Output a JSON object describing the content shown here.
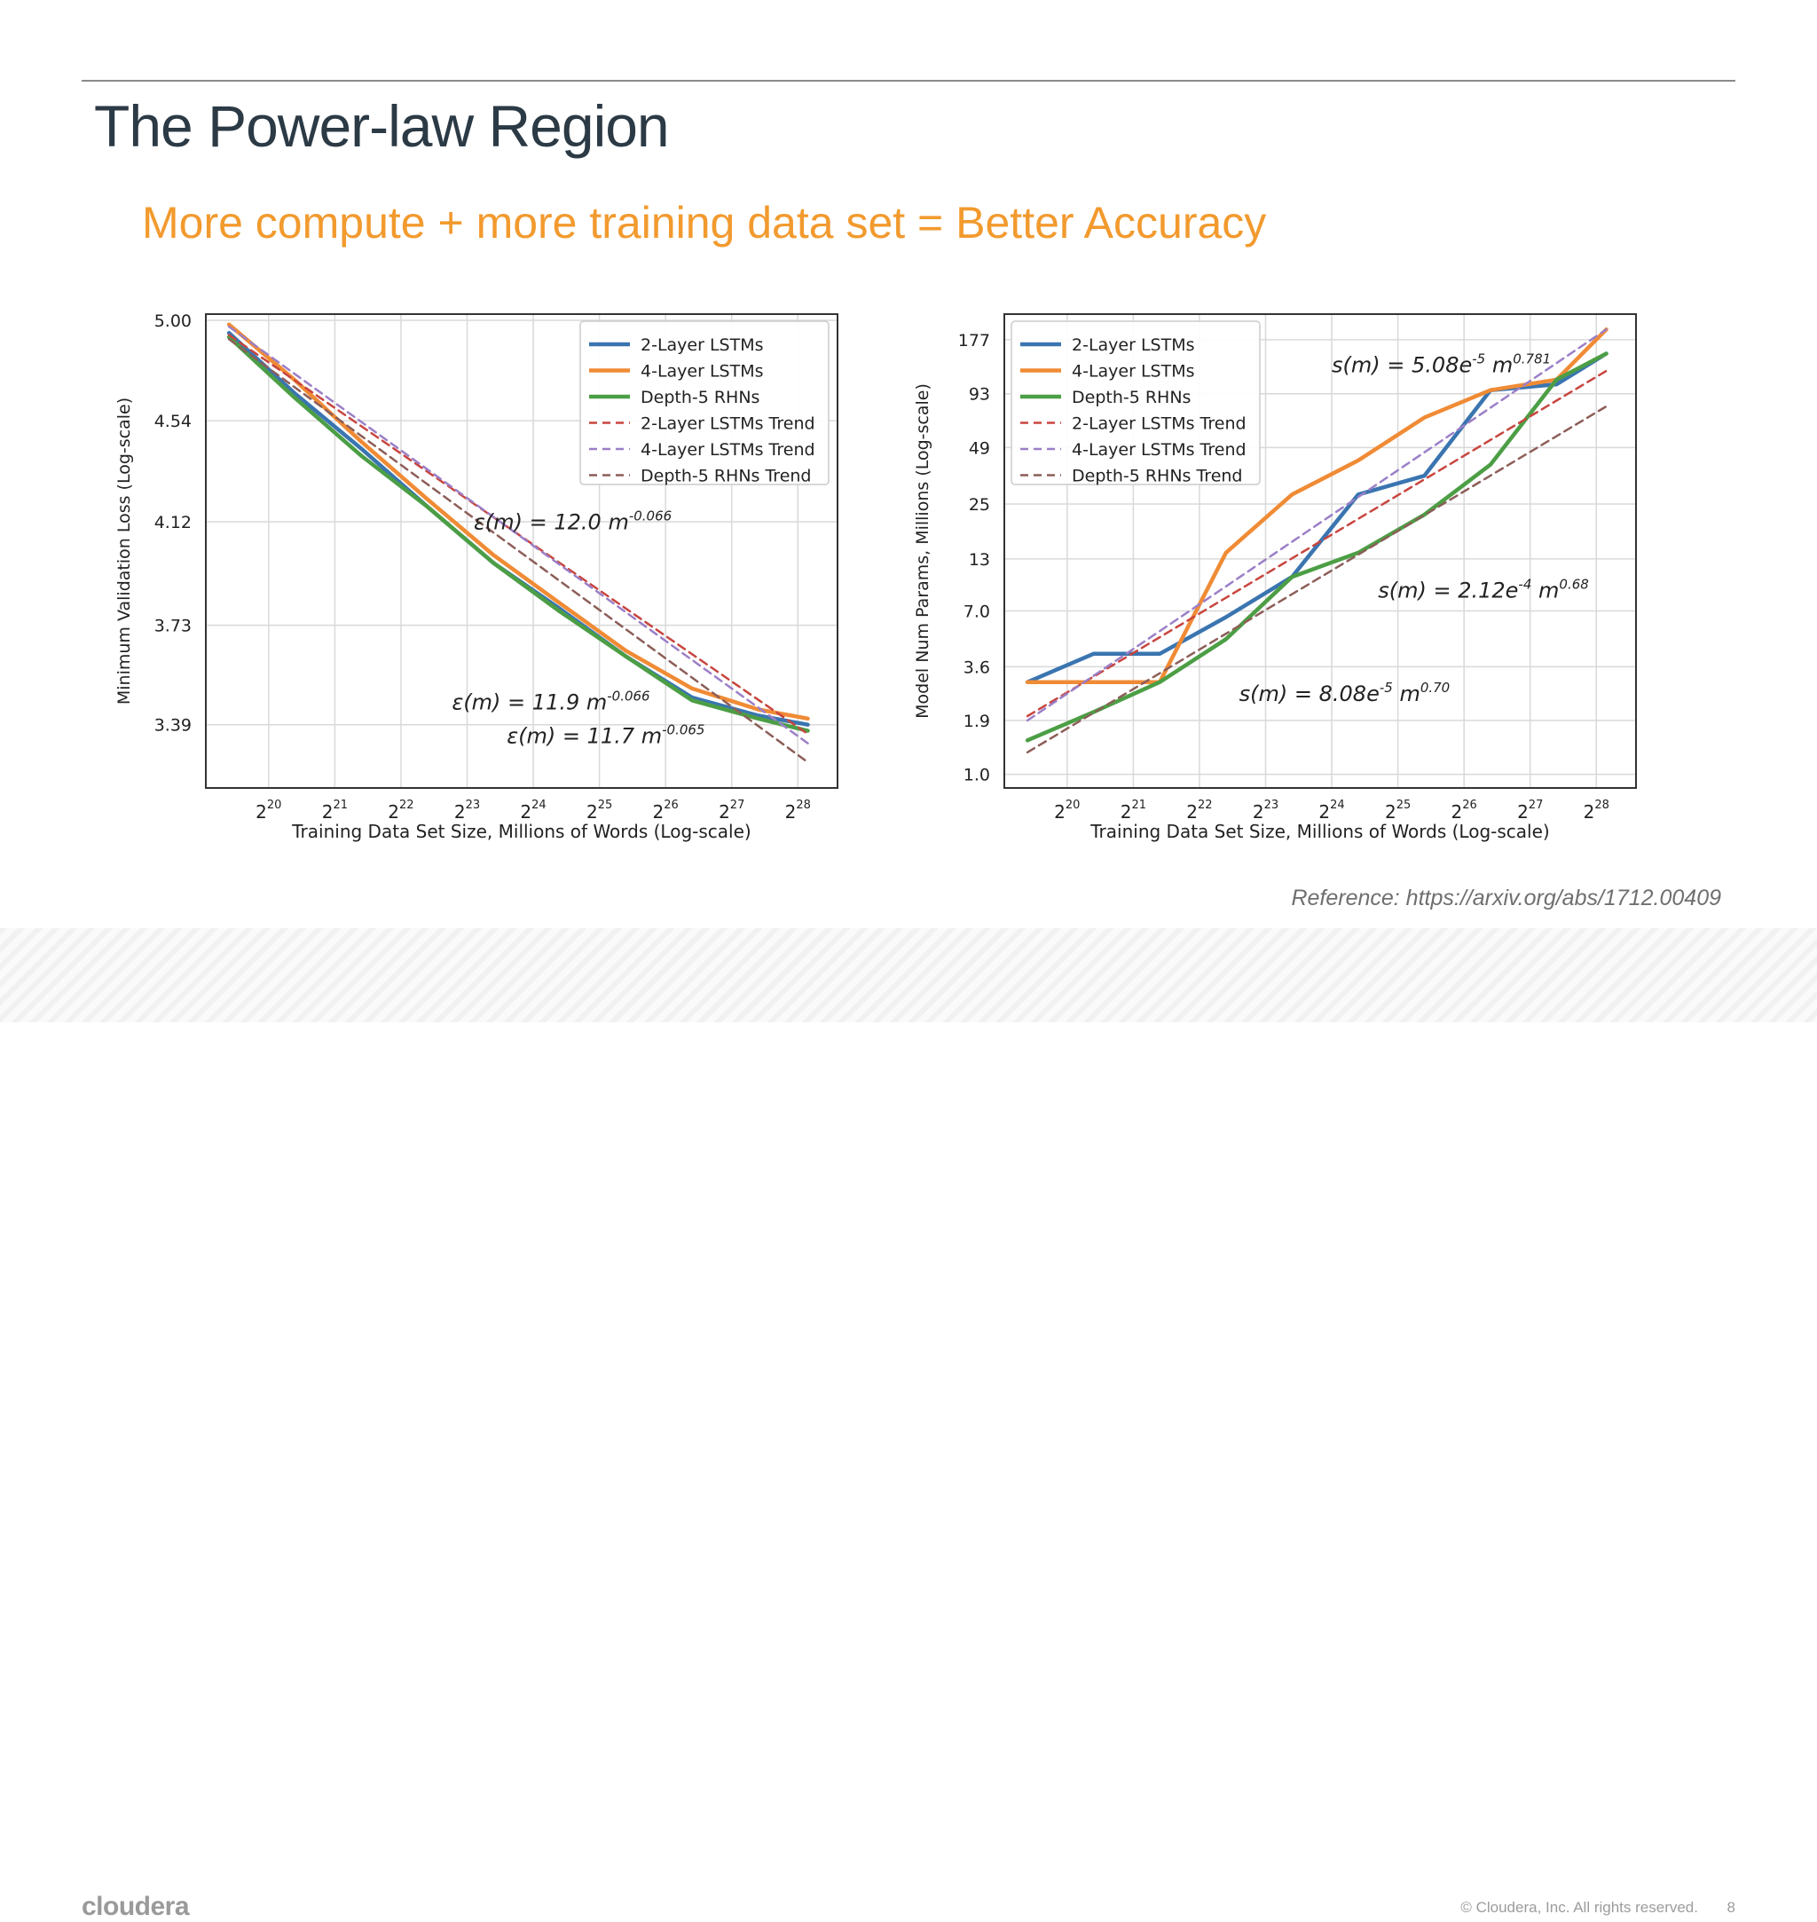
{
  "slide": {
    "title": "The Power-law Region",
    "subtitle": "More compute + more training data set = Better Accuracy",
    "reference": "Reference: https://arxiv.org/abs/1712.00409",
    "logo": "cloudera",
    "copyright": "© Cloudera, Inc. All rights reserved.",
    "page_number": "8"
  },
  "colors": {
    "title": "#2b3a45",
    "subtitle": "#f29a2e",
    "series_blue": "#3a75b0",
    "series_orange": "#f08b35",
    "series_green": "#4c9e45",
    "trend_red": "#c8453f",
    "trend_purple": "#9b7fc7",
    "trend_brown": "#8c5e58"
  },
  "chart_data": [
    {
      "type": "line",
      "xlabel": "Training Data Set Size, Millions of Words (Log-scale)",
      "ylabel": "Minimum Validation Loss (Log-scale)",
      "x_scale": "log2",
      "y_scale": "log",
      "x_ticks": [
        "20",
        "21",
        "22",
        "23",
        "24",
        "25",
        "26",
        "27",
        "28"
      ],
      "x_tick_base": "2",
      "y_ticks": [
        "5.00",
        "4.54",
        "4.12",
        "3.73",
        "3.39"
      ],
      "xlim": [
        19.05,
        28.6
      ],
      "ylim": [
        3.19,
        5.03
      ],
      "grid": true,
      "legend_position": "top-right",
      "series": [
        {
          "name": "2-Layer LSTMs",
          "style": "solid",
          "color": "#3a75b0",
          "x": [
            19.4,
            20.4,
            21.4,
            22.4,
            23.4,
            24.4,
            25.4,
            26.4,
            27.4,
            28.15
          ],
          "y": [
            4.94,
            4.66,
            4.42,
            4.18,
            3.96,
            3.79,
            3.62,
            3.48,
            3.42,
            3.39
          ]
        },
        {
          "name": "4-Layer LSTMs",
          "style": "solid",
          "color": "#f08b35",
          "x": [
            19.4,
            20.4,
            21.4,
            22.4,
            23.4,
            24.4,
            25.4,
            26.4,
            27.4,
            28.15
          ],
          "y": [
            4.98,
            4.72,
            4.45,
            4.21,
            3.99,
            3.81,
            3.64,
            3.51,
            3.44,
            3.41
          ]
        },
        {
          "name": "Depth-5 RHNs",
          "style": "solid",
          "color": "#4c9e45",
          "x": [
            19.4,
            20.4,
            21.4,
            22.4,
            23.4,
            24.4,
            25.4,
            26.4,
            27.4,
            28.15
          ],
          "y": [
            4.92,
            4.64,
            4.39,
            4.18,
            3.96,
            3.78,
            3.62,
            3.47,
            3.41,
            3.37
          ]
        },
        {
          "name": "2-Layer LSTMs Trend",
          "style": "dashed",
          "color": "#c8453f",
          "x": [
            19.4,
            28.15
          ],
          "y": [
            4.93,
            3.36
          ]
        },
        {
          "name": "4-Layer LSTMs Trend",
          "style": "dashed",
          "color": "#9b7fc7",
          "x": [
            19.4,
            28.15
          ],
          "y": [
            4.97,
            3.33
          ]
        },
        {
          "name": "Depth-5 RHNs Trend",
          "style": "dashed",
          "color": "#8c5e58",
          "x": [
            19.4,
            28.15
          ],
          "y": [
            4.91,
            3.27
          ]
        }
      ],
      "annotations": [
        {
          "prefix": "ε(m) = 12.0 m",
          "sup": "-0.066",
          "x": 23.1,
          "y": 4.09
        },
        {
          "prefix": "ε(m) = 11.9 m",
          "sup": "-0.066",
          "x": 22.77,
          "y": 3.44
        },
        {
          "prefix": "ε(m) = 11.7 m",
          "sup": "-0.065",
          "x": 23.6,
          "y": 3.33
        }
      ]
    },
    {
      "type": "line",
      "xlabel": "Training Data Set Size, Millions of Words (Log-scale)",
      "ylabel": "Model Num Params, Millions (Log-scale)",
      "x_scale": "log2",
      "y_scale": "log",
      "x_ticks": [
        "20",
        "21",
        "22",
        "23",
        "24",
        "25",
        "26",
        "27",
        "28"
      ],
      "x_tick_base": "2",
      "y_ticks": [
        "177",
        "93",
        "49",
        "25",
        "13",
        "7.0",
        "3.6",
        "1.9",
        "1.0"
      ],
      "xlim": [
        19.05,
        28.6
      ],
      "ylim": [
        0.85,
        240
      ],
      "grid": true,
      "legend_position": "top-left",
      "series": [
        {
          "name": "2-Layer LSTMs",
          "style": "solid",
          "color": "#3a75b0",
          "x": [
            19.4,
            20.4,
            21.4,
            22.4,
            23.4,
            24.4,
            25.4,
            26.4,
            27.4,
            28.15
          ],
          "y": [
            3.0,
            4.2,
            4.2,
            6.5,
            10.5,
            28,
            35,
            97,
            104,
            150
          ]
        },
        {
          "name": "4-Layer LSTMs",
          "style": "solid",
          "color": "#f08b35",
          "x": [
            19.4,
            20.4,
            21.4,
            22.4,
            23.4,
            24.4,
            25.4,
            26.4,
            27.4,
            28.15
          ],
          "y": [
            3.0,
            3.0,
            3.0,
            14,
            28,
            42,
            70,
            97,
            110,
            200
          ]
        },
        {
          "name": "Depth-5 RHNs",
          "style": "solid",
          "color": "#4c9e45",
          "x": [
            19.4,
            20.4,
            21.4,
            22.4,
            23.4,
            24.4,
            25.4,
            26.4,
            27.4,
            28.15
          ],
          "y": [
            1.5,
            2.1,
            3.0,
            5.0,
            10.5,
            14,
            22,
            40,
            110,
            150
          ]
        },
        {
          "name": "2-Layer LSTMs Trend",
          "style": "dashed",
          "color": "#c8453f",
          "x": [
            19.4,
            28.15
          ],
          "y": [
            2.0,
            122
          ]
        },
        {
          "name": "4-Layer LSTMs Trend",
          "style": "dashed",
          "color": "#9b7fc7",
          "x": [
            19.4,
            28.15
          ],
          "y": [
            1.9,
            200
          ]
        },
        {
          "name": "Depth-5 RHNs Trend",
          "style": "dashed",
          "color": "#8c5e58",
          "x": [
            19.4,
            28.15
          ],
          "y": [
            1.3,
            80
          ]
        }
      ],
      "annotations": [
        {
          "prefix": "s(m) = 5.08e",
          "sup": "-5",
          "mid": " m",
          "sup2": "0.781",
          "x": 24.0,
          "y": 120
        },
        {
          "prefix": "s(m) = 2.12e",
          "sup": "-4",
          "mid": " m",
          "sup2": "0.68",
          "x": 24.7,
          "y": 8.2
        },
        {
          "prefix": "s(m) = 8.08e",
          "sup": "-5",
          "mid": " m",
          "sup2": "0.70",
          "x": 22.6,
          "y": 2.4
        }
      ]
    }
  ]
}
